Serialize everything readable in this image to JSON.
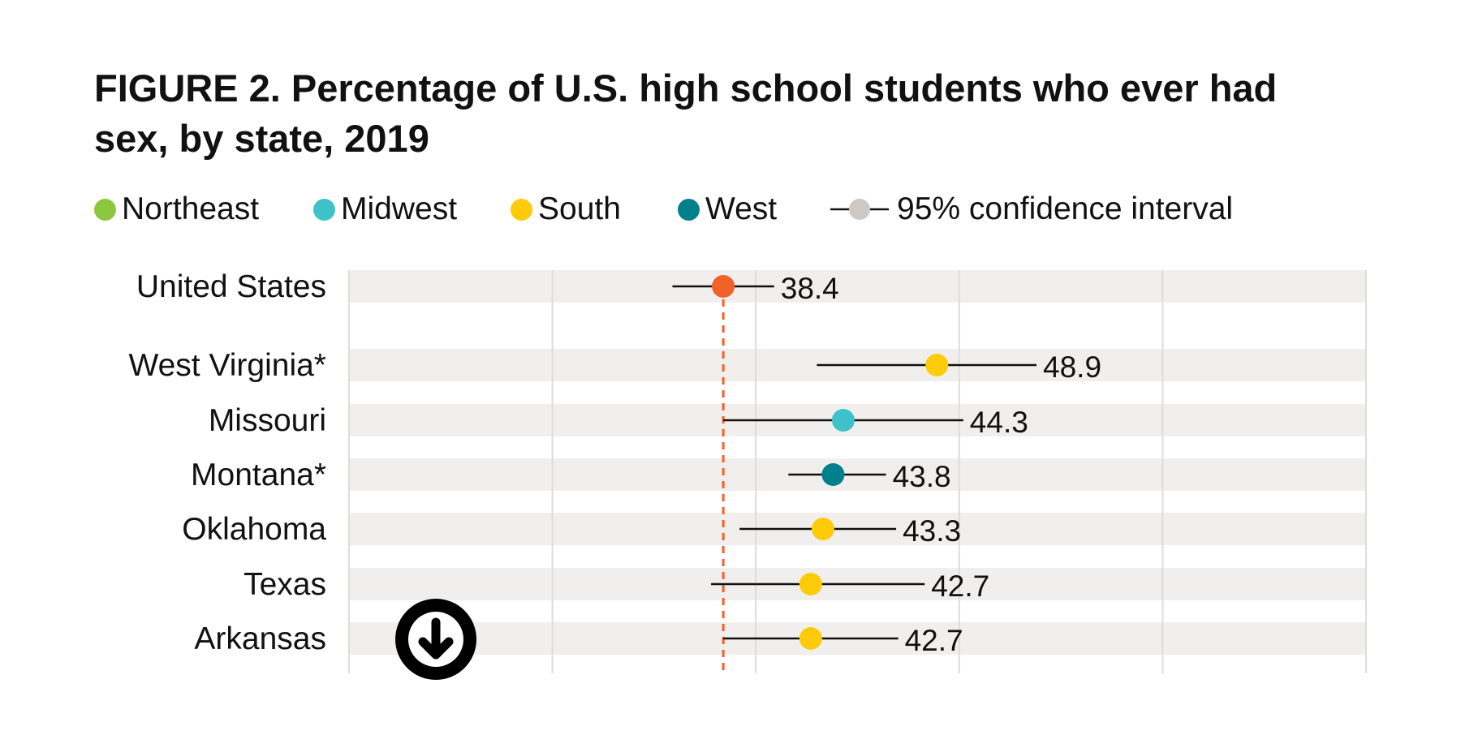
{
  "title": "FIGURE 2. Percentage of U.S. high school students who ever had sex, by state, 2019",
  "legend": {
    "items": [
      {
        "label": "Northeast",
        "color": "#8dc63f"
      },
      {
        "label": "Midwest",
        "color": "#3fc1c9"
      },
      {
        "label": "South",
        "color": "#fecb0a"
      },
      {
        "label": "West",
        "color": "#00808a"
      }
    ],
    "ci_label": "95% confidence interval",
    "ci_color": "#cdc8c1"
  },
  "reference_color": "#f26127",
  "download_icon": "arrow-down-circle-icon",
  "chart_data": {
    "type": "dot-plot",
    "title": "FIGURE 2. Percentage of U.S. high school students who ever had sex, by state, 2019",
    "xlim": [
      20,
      70
    ],
    "grid": true,
    "reference_line": {
      "label": "United States",
      "value": 38.4
    },
    "rows": [
      {
        "label": "United States",
        "value": 38.4,
        "value_label": "38.4",
        "ci": [
          35.9,
          40.9
        ],
        "region": "National",
        "color": "#f26127"
      },
      {
        "label": "West Virginia*",
        "value": 48.9,
        "value_label": "48.9",
        "ci": [
          43.0,
          53.8
        ],
        "region": "South",
        "color": "#fecb0a"
      },
      {
        "label": "Missouri",
        "value": 44.3,
        "value_label": "44.3",
        "ci": [
          38.4,
          50.2
        ],
        "region": "Midwest",
        "color": "#3fc1c9"
      },
      {
        "label": "Montana*",
        "value": 43.8,
        "value_label": "43.8",
        "ci": [
          41.6,
          46.4
        ],
        "region": "West",
        "color": "#00808a"
      },
      {
        "label": "Oklahoma",
        "value": 43.3,
        "value_label": "43.3",
        "ci": [
          39.2,
          46.9
        ],
        "region": "South",
        "color": "#fecb0a"
      },
      {
        "label": "Texas",
        "value": 42.7,
        "value_label": "42.7",
        "ci": [
          37.8,
          48.3
        ],
        "region": "South",
        "color": "#fecb0a"
      },
      {
        "label": "Arkansas",
        "value": 42.7,
        "value_label": "42.7",
        "ci": [
          38.4,
          47.0
        ],
        "region": "South",
        "color": "#fecb0a"
      }
    ]
  }
}
